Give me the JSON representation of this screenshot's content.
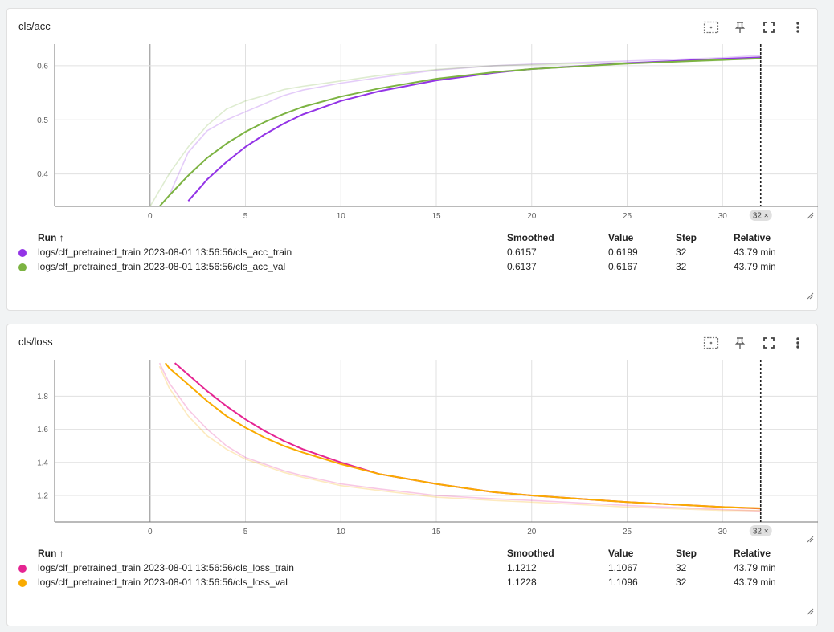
{
  "table_headers": {
    "run": "Run",
    "sort_arrow": "↑",
    "smoothed": "Smoothed",
    "value": "Value",
    "step": "Step",
    "relative": "Relative"
  },
  "cards": [
    {
      "title": "cls/acc",
      "step_badge": "32 ×",
      "runs": [
        {
          "name": "logs/clf_pretrained_train 2023-08-01 13:56:56/cls_acc_train",
          "smoothed": "0.6157",
          "value": "0.6199",
          "step": "32",
          "relative": "43.79 min",
          "color": "#9334e6"
        },
        {
          "name": "logs/clf_pretrained_train 2023-08-01 13:56:56/cls_acc_val",
          "smoothed": "0.6137",
          "value": "0.6167",
          "step": "32",
          "relative": "43.79 min",
          "color": "#7cb342"
        }
      ]
    },
    {
      "title": "cls/loss",
      "step_badge": "32 ×",
      "runs": [
        {
          "name": "logs/clf_pretrained_train 2023-08-01 13:56:56/cls_loss_train",
          "smoothed": "1.1212",
          "value": "1.1067",
          "step": "32",
          "relative": "43.79 min",
          "color": "#e52592"
        },
        {
          "name": "logs/clf_pretrained_train 2023-08-01 13:56:56/cls_loss_val",
          "smoothed": "1.1228",
          "value": "1.1096",
          "step": "32",
          "relative": "43.79 min",
          "color": "#f9ab00"
        }
      ]
    }
  ],
  "chart_data": [
    {
      "type": "line",
      "title": "cls/acc",
      "xlim": [
        -5,
        35
      ],
      "ylim": [
        0.34,
        0.64
      ],
      "xticks": [
        "0",
        "5",
        "10",
        "15",
        "20",
        "25",
        "30"
      ],
      "yticks": [
        "0.4",
        "0.5",
        "0.6"
      ],
      "grid": true,
      "marker_step": 32,
      "series": [
        {
          "name": "cls_acc_train",
          "kind": "raw",
          "color": "#9334e6",
          "x": [
            1,
            2,
            3,
            4,
            5,
            6,
            7,
            8,
            10,
            12,
            15,
            18,
            20,
            25,
            30,
            32
          ],
          "y": [
            0.36,
            0.44,
            0.48,
            0.5,
            0.515,
            0.53,
            0.545,
            0.555,
            0.568,
            0.578,
            0.592,
            0.6,
            0.603,
            0.609,
            0.615,
            0.619
          ]
        },
        {
          "name": "cls_acc_val",
          "kind": "raw",
          "color": "#7cb342",
          "x": [
            0,
            1,
            2,
            3,
            4,
            5,
            6,
            7,
            8,
            10,
            12,
            15,
            18,
            20,
            25,
            30,
            32
          ],
          "y": [
            0.34,
            0.4,
            0.45,
            0.49,
            0.52,
            0.535,
            0.545,
            0.556,
            0.562,
            0.572,
            0.582,
            0.593,
            0.6,
            0.602,
            0.606,
            0.61,
            0.6167
          ]
        },
        {
          "name": "cls_acc_train",
          "kind": "smoothed",
          "color": "#9334e6",
          "x": [
            2,
            3,
            4,
            5,
            6,
            7,
            8,
            10,
            12,
            15,
            18,
            20,
            25,
            30,
            32
          ],
          "y": [
            0.35,
            0.39,
            0.422,
            0.45,
            0.473,
            0.493,
            0.51,
            0.535,
            0.553,
            0.573,
            0.587,
            0.594,
            0.605,
            0.613,
            0.6157
          ]
        },
        {
          "name": "cls_acc_val",
          "kind": "smoothed",
          "color": "#7cb342",
          "x": [
            0.5,
            1,
            2,
            3,
            4,
            5,
            6,
            7,
            8,
            10,
            12,
            15,
            18,
            20,
            25,
            30,
            32
          ],
          "y": [
            0.34,
            0.36,
            0.397,
            0.43,
            0.456,
            0.478,
            0.496,
            0.511,
            0.524,
            0.543,
            0.558,
            0.576,
            0.588,
            0.594,
            0.604,
            0.611,
            0.6137
          ]
        }
      ]
    },
    {
      "type": "line",
      "title": "cls/loss",
      "xlim": [
        -5,
        35
      ],
      "ylim": [
        1.04,
        2.02
      ],
      "xticks": [
        "0",
        "5",
        "10",
        "15",
        "20",
        "25",
        "30"
      ],
      "yticks": [
        "1.2",
        "1.4",
        "1.6",
        "1.8"
      ],
      "grid": true,
      "marker_step": 32,
      "series": [
        {
          "name": "cls_loss_train",
          "kind": "raw",
          "color": "#e52592",
          "x": [
            0.5,
            1,
            2,
            3,
            4,
            5,
            6,
            7,
            8,
            10,
            12,
            15,
            18,
            20,
            25,
            30,
            32
          ],
          "y": [
            2.0,
            1.88,
            1.72,
            1.6,
            1.5,
            1.43,
            1.39,
            1.35,
            1.32,
            1.27,
            1.24,
            1.2,
            1.18,
            1.17,
            1.14,
            1.115,
            1.1067
          ]
        },
        {
          "name": "cls_loss_val",
          "kind": "raw",
          "color": "#f9ab00",
          "x": [
            0.5,
            1,
            2,
            3,
            4,
            5,
            6,
            7,
            8,
            10,
            12,
            15,
            18,
            20,
            25,
            30,
            32
          ],
          "y": [
            1.98,
            1.85,
            1.68,
            1.56,
            1.48,
            1.42,
            1.38,
            1.34,
            1.31,
            1.26,
            1.23,
            1.19,
            1.17,
            1.16,
            1.13,
            1.11,
            1.1096
          ]
        },
        {
          "name": "cls_loss_train",
          "kind": "smoothed",
          "color": "#e52592",
          "x": [
            1.3,
            2,
            3,
            4,
            5,
            6,
            7,
            8,
            10,
            12,
            15,
            18,
            20,
            25,
            30,
            32
          ],
          "y": [
            2.0,
            1.93,
            1.83,
            1.74,
            1.66,
            1.59,
            1.53,
            1.48,
            1.4,
            1.33,
            1.27,
            1.22,
            1.2,
            1.16,
            1.13,
            1.1212
          ]
        },
        {
          "name": "cls_loss_val",
          "kind": "smoothed",
          "color": "#f9ab00",
          "x": [
            0.8,
            1,
            2,
            3,
            4,
            5,
            6,
            7,
            8,
            10,
            12,
            15,
            18,
            20,
            25,
            30,
            32
          ],
          "y": [
            2.0,
            1.97,
            1.87,
            1.77,
            1.68,
            1.61,
            1.55,
            1.5,
            1.46,
            1.39,
            1.33,
            1.27,
            1.22,
            1.2,
            1.16,
            1.13,
            1.1228
          ]
        }
      ]
    }
  ]
}
